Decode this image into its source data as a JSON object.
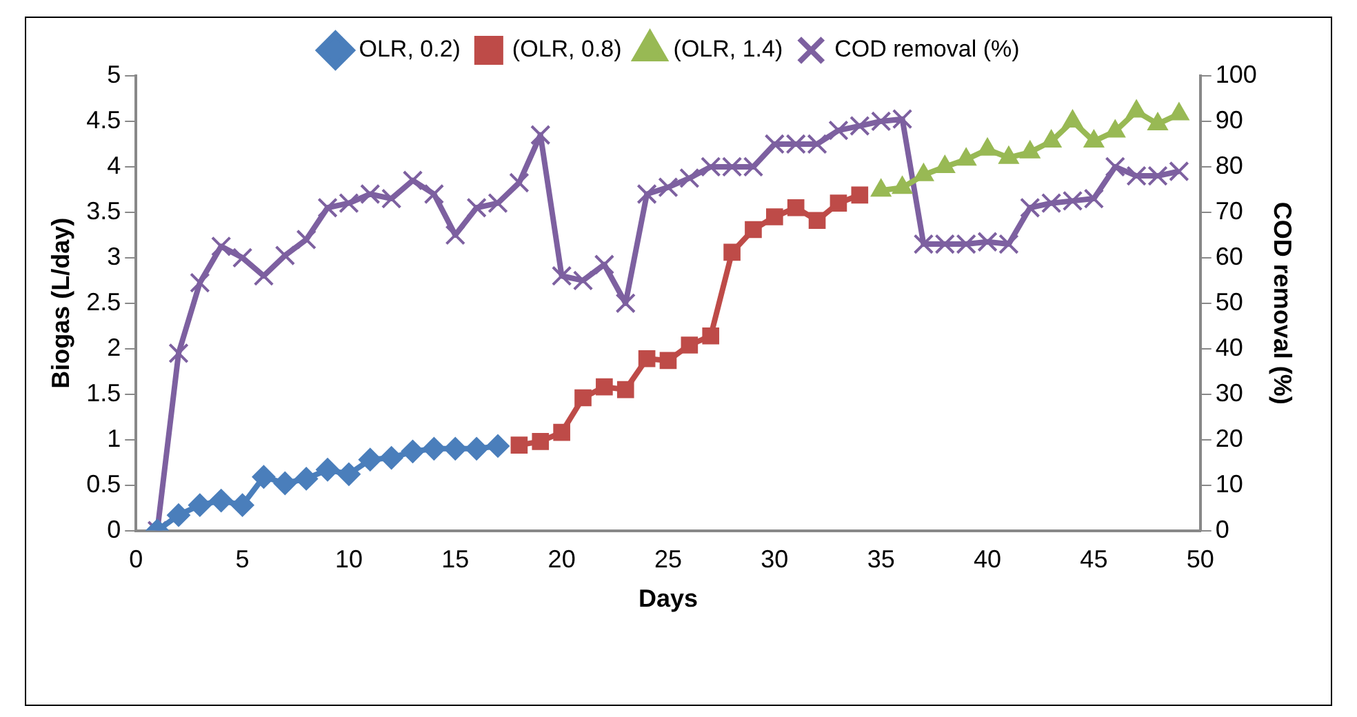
{
  "chart_data": {
    "type": "line",
    "xlabel": "Days",
    "ylabel": "Biogas (L/day)",
    "y2label": "COD removal (%)",
    "xlim": [
      0,
      50
    ],
    "xticks": [
      0,
      5,
      10,
      15,
      20,
      25,
      30,
      35,
      40,
      45,
      50
    ],
    "ylim": [
      0,
      5
    ],
    "yticks": [
      0,
      0.5,
      1,
      1.5,
      2,
      2.5,
      3,
      3.5,
      4,
      4.5,
      5
    ],
    "y2lim": [
      0,
      100
    ],
    "y2ticks": [
      0,
      10,
      20,
      30,
      40,
      50,
      60,
      70,
      80,
      90,
      100
    ],
    "grid": false,
    "legend": "top",
    "line_style": "solid",
    "series": [
      {
        "name": "OLR, 0.2)",
        "color": "#4a7ebb",
        "marker": "diamond",
        "x": [
          1,
          2,
          3,
          4,
          5,
          6,
          7,
          8,
          9,
          10,
          11,
          12,
          13,
          14,
          15,
          16,
          17
        ],
        "values": [
          0,
          0.17,
          0.28,
          0.33,
          0.28,
          0.59,
          0.52,
          0.57,
          0.67,
          0.62,
          0.78,
          0.8,
          0.87,
          0.9,
          0.9,
          0.9,
          0.93
        ]
      },
      {
        "name": "(OLR, 0.8)",
        "color": "#be4b48",
        "marker": "square",
        "x": [
          18,
          19,
          20,
          21,
          22,
          23,
          24,
          25,
          26,
          27,
          28,
          29,
          30,
          31,
          32,
          33,
          34
        ],
        "values": [
          0.94,
          0.98,
          1.08,
          1.46,
          1.58,
          1.55,
          1.89,
          1.87,
          2.04,
          2.14,
          3.06,
          3.31,
          3.45,
          3.55,
          3.41,
          3.6,
          3.69
        ]
      },
      {
        "name": "(OLR, 1.4)",
        "color": "#98b954",
        "marker": "triangle",
        "x": [
          35,
          36,
          37,
          38,
          39,
          40,
          41,
          42,
          43,
          44,
          45,
          46,
          47,
          48,
          49
        ],
        "values": [
          3.74,
          3.77,
          3.91,
          4.0,
          4.08,
          4.19,
          4.1,
          4.16,
          4.28,
          4.5,
          4.28,
          4.39,
          4.61,
          4.47,
          4.58
        ]
      },
      {
        "name": "COD removal (%)",
        "color": "#7d60a0",
        "marker": "cross",
        "axis": "y2",
        "x": [
          1,
          2,
          3,
          4,
          5,
          6,
          7,
          8,
          9,
          10,
          11,
          12,
          13,
          14,
          15,
          16,
          17,
          18,
          19,
          20,
          21,
          22,
          23,
          24,
          25,
          26,
          27,
          28,
          29,
          30,
          31,
          32,
          33,
          34,
          35,
          36,
          37,
          38,
          39,
          40,
          41,
          42,
          43,
          44,
          45,
          46,
          47,
          48,
          49
        ],
        "values": [
          0,
          39,
          54.5,
          62.5,
          60,
          56,
          60.5,
          64,
          71,
          72,
          74,
          73,
          77,
          74,
          65,
          71,
          72,
          76.5,
          87,
          56,
          55,
          58.5,
          50,
          74,
          75.5,
          77.5,
          80,
          80,
          80,
          85,
          85,
          85,
          88,
          89,
          90,
          90.5,
          63,
          63,
          63,
          63.5,
          63,
          71,
          72,
          72.5,
          73,
          80,
          78,
          78,
          79
        ]
      }
    ]
  }
}
